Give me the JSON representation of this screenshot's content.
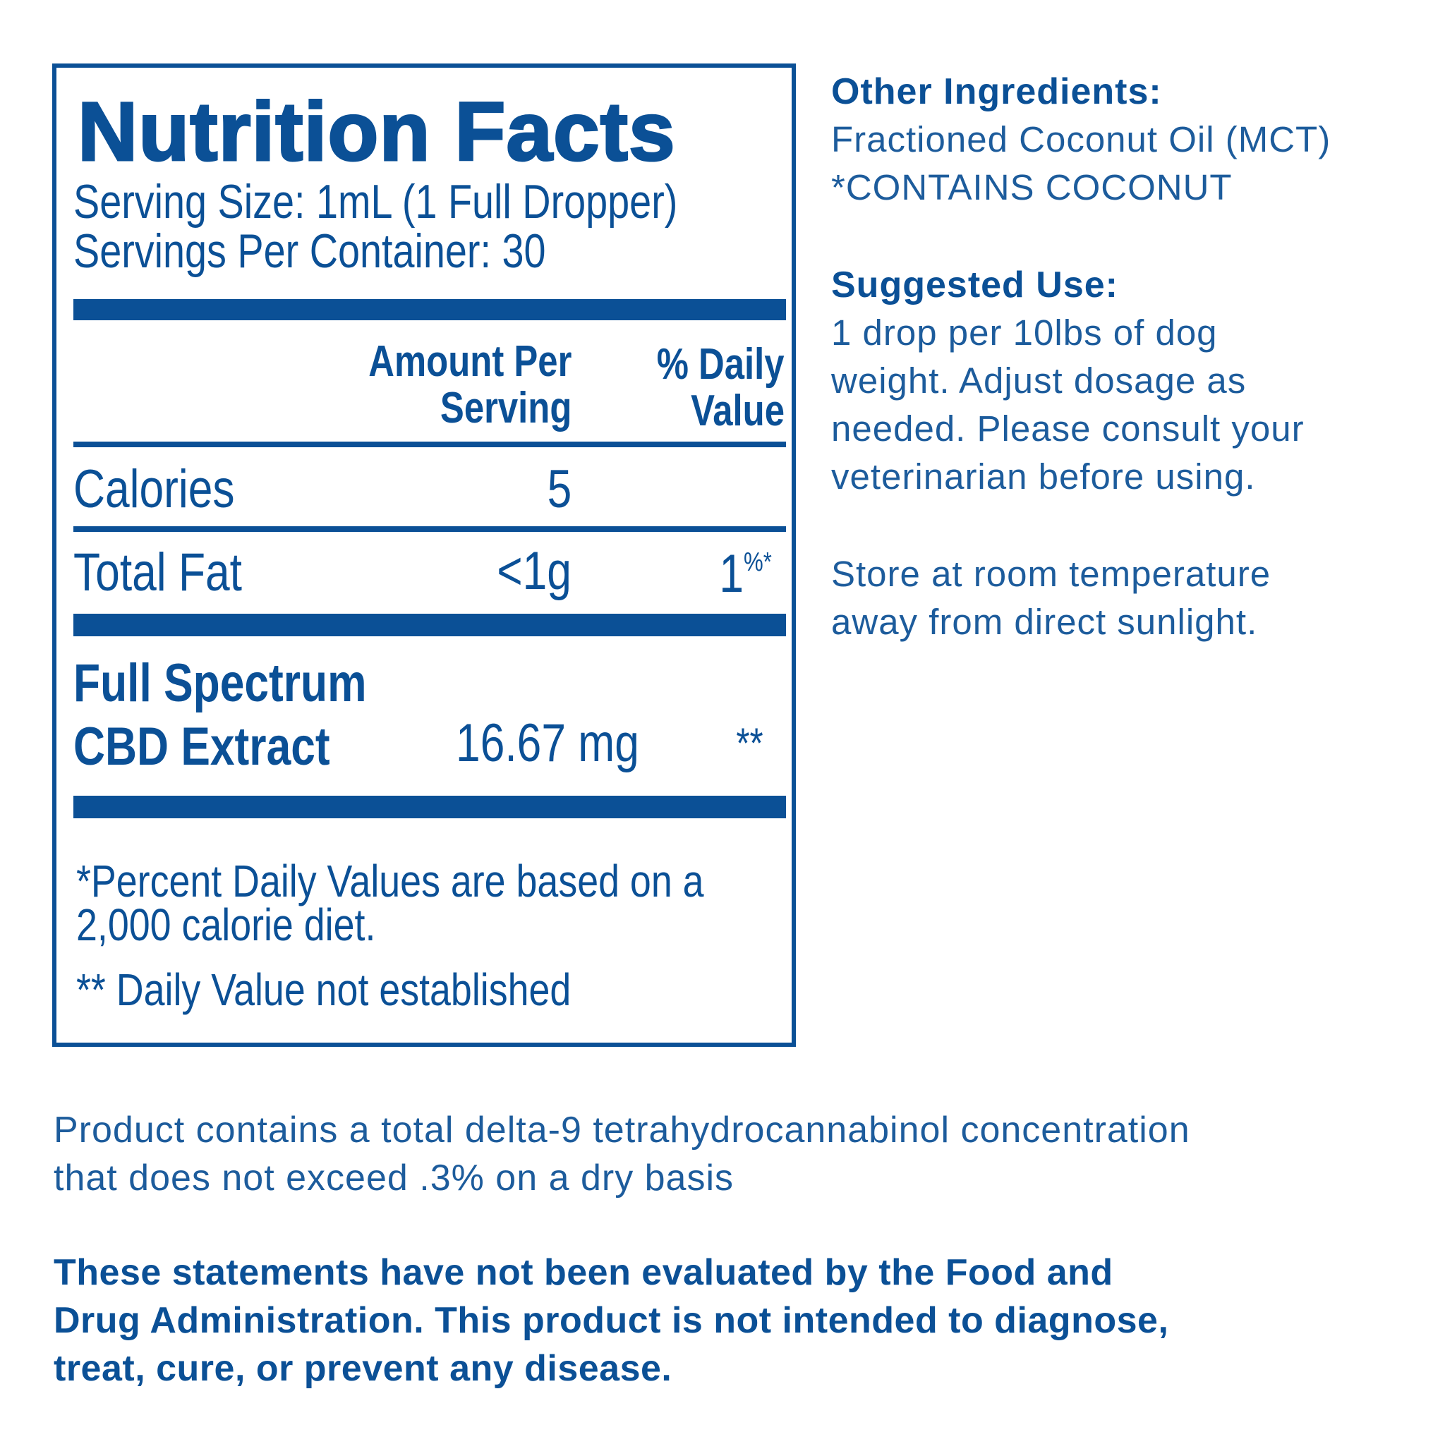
{
  "nutrition": {
    "title": "Nutrition Facts",
    "serving_size": "Serving Size: 1mL (1 Full Dropper)",
    "servings_per_container": "Servings Per Container: 30",
    "col_amount_line1": "Amount Per",
    "col_amount_line2": "Serving",
    "col_daily_line1": "% Daily",
    "col_daily_line2": "Value",
    "rows": [
      {
        "label": "Calories",
        "amount": "5",
        "daily": ""
      },
      {
        "label": "Total Fat",
        "amount": "<1g",
        "daily": "1",
        "daily_sup": "%*"
      }
    ],
    "cbd": {
      "label_line1": "Full Spectrum",
      "label_line2": "CBD Extract",
      "amount": "16.67 mg",
      "daily": "**"
    },
    "footnote1_line1": "*Percent Daily Values are based on a",
    "footnote1_line2": "2,000 calorie diet.",
    "footnote2": "** Daily Value not established"
  },
  "other_ingredients": {
    "heading": "Other Ingredients:",
    "line1": "Fractioned Coconut Oil (MCT)",
    "line2": "*CONTAINS COCONUT"
  },
  "suggested_use": {
    "heading": "Suggested Use:",
    "lines": [
      "1 drop per 10lbs of dog",
      "weight. Adjust dosage as",
      "needed. Please consult your",
      "veterinarian before using."
    ]
  },
  "storage": {
    "lines": [
      "Store at room temperature",
      "away from direct sunlight."
    ]
  },
  "thc_notice": {
    "lines": [
      "Product contains a total delta-9 tetrahydrocannabinol concentration",
      "that does not exceed .3% on a dry basis"
    ]
  },
  "fda_disclaimer": {
    "lines": [
      "These statements have not been evaluated by the Food and",
      "Drug Administration. This product is not intended to diagnose,",
      "treat, cure, or prevent any disease."
    ]
  },
  "colors": {
    "primary_blue": "#0b5096",
    "text_blue": "#1d5c9c",
    "background": "#ffffff"
  }
}
